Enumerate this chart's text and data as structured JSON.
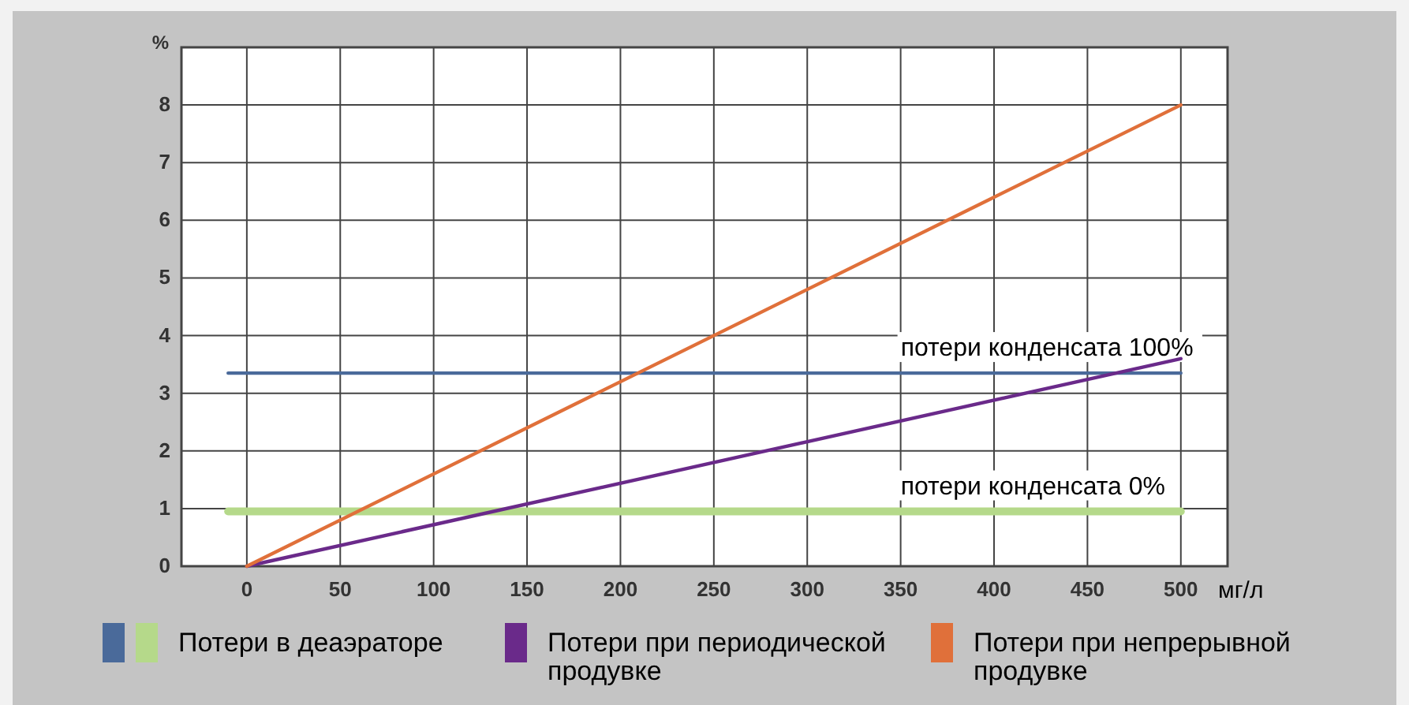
{
  "chart_data": {
    "type": "line",
    "ylabel": "%",
    "xlabel": "мг/л",
    "xlim": [
      -35,
      525
    ],
    "xticks": [
      0,
      50,
      100,
      150,
      200,
      250,
      300,
      350,
      400,
      450,
      500
    ],
    "ylim": [
      0,
      9
    ],
    "yticks": [
      0,
      1,
      2,
      3,
      4,
      5,
      6,
      7,
      8
    ],
    "grid": true,
    "legend": "bottom",
    "marker": "none",
    "line_style": "solid",
    "series": [
      {
        "color": "#4a6a9a",
        "x": [
          -10,
          500
        ],
        "values": [
          3.35,
          3.35
        ]
      },
      {
        "name": "Потери в деаэраторе",
        "color": "#b5d98a",
        "x": [
          -10,
          500
        ],
        "values": [
          0.95,
          0.95
        ]
      },
      {
        "name": "Потери при периодической продувке",
        "color": "#6a2a8a",
        "x": [
          0,
          500
        ],
        "values": [
          0,
          3.6
        ]
      },
      {
        "name": "Потери при непрерывной продувке",
        "color": "#e0703a",
        "x": [
          0,
          500
        ],
        "values": [
          0,
          8
        ]
      }
    ],
    "annotations": [
      {
        "text": "потери конденсата 100%",
        "x": 350,
        "y": 3.35
      },
      {
        "text": "потери конденсата 0%",
        "x": 350,
        "y": 0.95
      }
    ]
  }
}
